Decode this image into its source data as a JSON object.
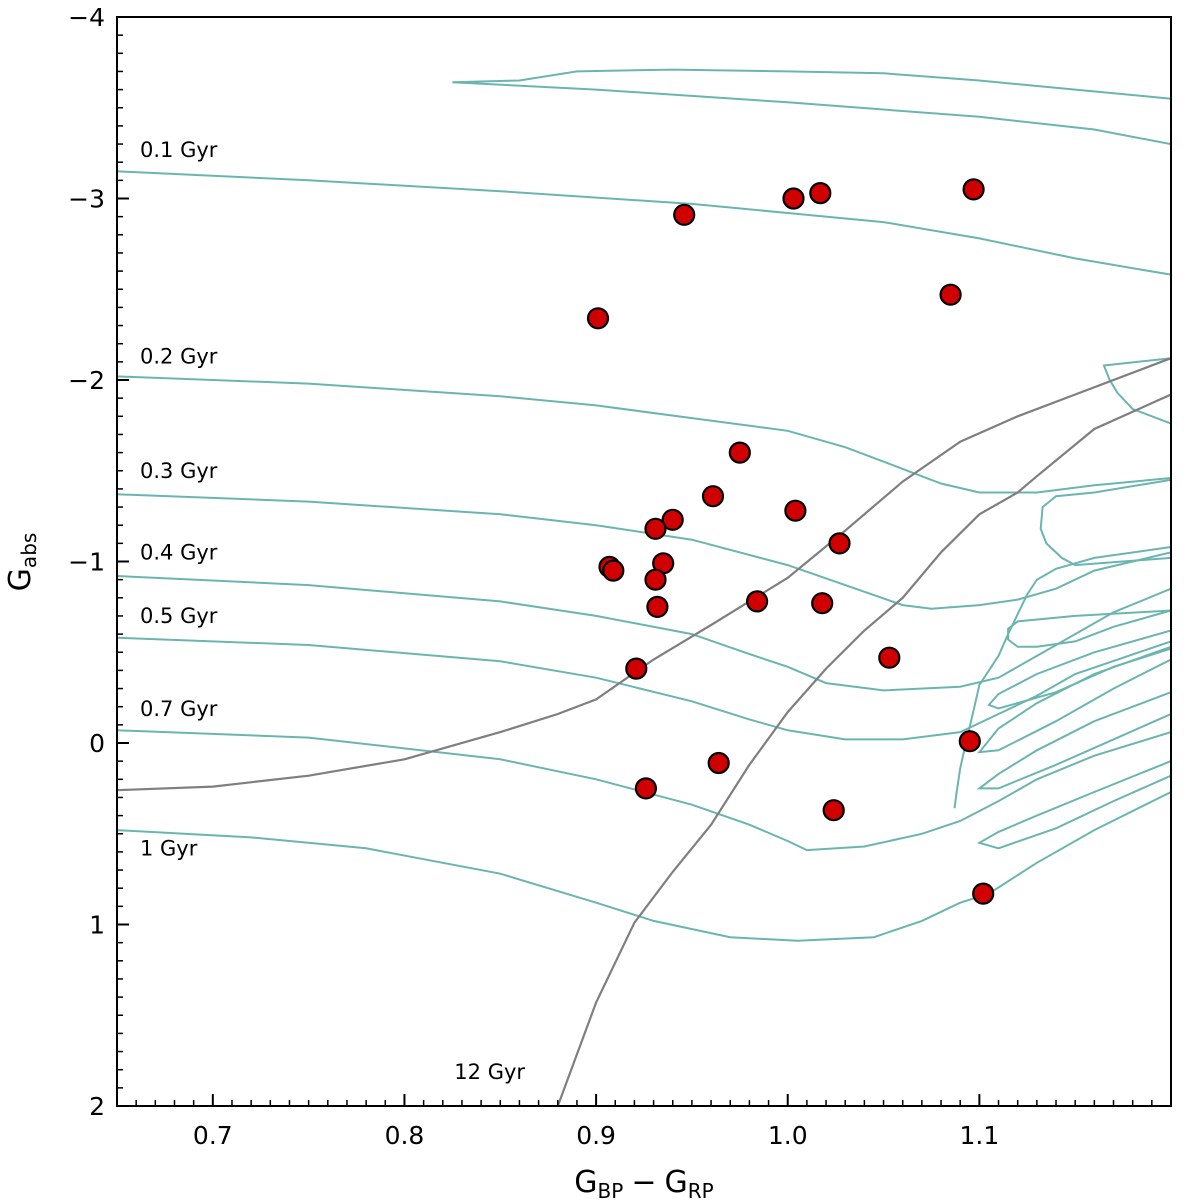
{
  "colors": {
    "isochrone": "#6bb5b1",
    "old_isochrone": "#7f7f7f",
    "star_fill": "#d10000",
    "star_edge": "#000000"
  },
  "chart_data": {
    "type": "scatter",
    "title": "",
    "xlabel": "G",
    "xlabel_sub1": "BP",
    "xlabel_op": "−",
    "xlabel_sub2": "RP",
    "ylabel": "G",
    "ylabel_sub": "abs",
    "xlim": [
      0.65,
      1.2
    ],
    "ylim": [
      2,
      -4
    ],
    "y_inverted": true,
    "grid": false,
    "legend": "none",
    "x_ticks": [
      {
        "value": 0.7,
        "label": "0.7"
      },
      {
        "value": 0.8,
        "label": "0.8"
      },
      {
        "value": 0.9,
        "label": "0.9"
      },
      {
        "value": 1.0,
        "label": "1.0"
      },
      {
        "value": 1.1,
        "label": "1.1"
      }
    ],
    "y_ticks": [
      {
        "value": -4,
        "label": "−4"
      },
      {
        "value": -3,
        "label": "−3"
      },
      {
        "value": -2,
        "label": "−2"
      },
      {
        "value": -1,
        "label": "−1"
      },
      {
        "value": 0,
        "label": "0"
      },
      {
        "value": 1,
        "label": "1"
      },
      {
        "value": 2,
        "label": "2"
      }
    ],
    "isochrone_labels": [
      {
        "text": "0.1 Gyr",
        "x": 0.662,
        "y": -3.23
      },
      {
        "text": "0.2 Gyr",
        "x": 0.662,
        "y": -2.09
      },
      {
        "text": "0.3 Gyr",
        "x": 0.662,
        "y": -1.46
      },
      {
        "text": "0.4 Gyr",
        "x": 0.662,
        "y": -1.01
      },
      {
        "text": "0.5 Gyr",
        "x": 0.662,
        "y": -0.66
      },
      {
        "text": "0.7 Gyr",
        "x": 0.662,
        "y": -0.15
      },
      {
        "text": "1 Gyr",
        "x": 0.662,
        "y": 0.62
      },
      {
        "text": "12 Gyr",
        "x": 0.826,
        "y": 1.85
      }
    ],
    "isochrones": [
      {
        "name": "0.1 Gyr",
        "points": [
          [
            0.65,
            -3.15
          ],
          [
            0.75,
            -3.1
          ],
          [
            0.85,
            -3.04
          ],
          [
            0.95,
            -2.97
          ],
          [
            1.0,
            -2.92
          ],
          [
            1.05,
            -2.87
          ],
          [
            1.1,
            -2.78
          ],
          [
            1.15,
            -2.67
          ],
          [
            1.2,
            -2.58
          ]
        ]
      },
      {
        "name": "0.2 Gyr",
        "points": [
          [
            0.65,
            -2.02
          ],
          [
            0.75,
            -1.98
          ],
          [
            0.85,
            -1.91
          ],
          [
            0.9,
            -1.86
          ],
          [
            0.95,
            -1.79
          ],
          [
            1.0,
            -1.72
          ],
          [
            1.03,
            -1.63
          ],
          [
            1.06,
            -1.51
          ],
          [
            1.08,
            -1.43
          ],
          [
            1.1,
            -1.38
          ],
          [
            1.13,
            -1.38
          ],
          [
            1.16,
            -1.42
          ],
          [
            1.2,
            -1.46
          ]
        ]
      },
      {
        "name": "0.3 Gyr",
        "points": [
          [
            0.65,
            -1.37
          ],
          [
            0.75,
            -1.33
          ],
          [
            0.85,
            -1.26
          ],
          [
            0.9,
            -1.2
          ],
          [
            0.95,
            -1.12
          ],
          [
            1.0,
            -0.98
          ],
          [
            1.03,
            -0.87
          ],
          [
            1.06,
            -0.76
          ],
          [
            1.075,
            -0.74
          ],
          [
            1.1,
            -0.76
          ],
          [
            1.12,
            -0.79
          ],
          [
            1.14,
            -0.85
          ],
          [
            1.16,
            -0.95
          ],
          [
            1.2,
            -1.05
          ]
        ]
      },
      {
        "name": "0.4 Gyr",
        "points": [
          [
            0.65,
            -0.92
          ],
          [
            0.75,
            -0.87
          ],
          [
            0.85,
            -0.78
          ],
          [
            0.9,
            -0.7
          ],
          [
            0.95,
            -0.6
          ],
          [
            0.98,
            -0.49
          ],
          [
            1.0,
            -0.42
          ],
          [
            1.02,
            -0.33
          ],
          [
            1.05,
            -0.29
          ],
          [
            1.09,
            -0.31
          ],
          [
            1.11,
            -0.36
          ],
          [
            1.13,
            -0.48
          ],
          [
            1.15,
            -0.6
          ],
          [
            1.17,
            -0.72
          ],
          [
            1.2,
            -0.85
          ]
        ]
      },
      {
        "name": "0.5 Gyr",
        "points": [
          [
            0.65,
            -0.58
          ],
          [
            0.75,
            -0.54
          ],
          [
            0.85,
            -0.45
          ],
          [
            0.9,
            -0.36
          ],
          [
            0.95,
            -0.23
          ],
          [
            0.98,
            -0.13
          ],
          [
            1.0,
            -0.07
          ],
          [
            1.03,
            -0.02
          ],
          [
            1.06,
            -0.02
          ],
          [
            1.09,
            -0.06
          ],
          [
            1.11,
            -0.16
          ],
          [
            1.13,
            -0.26
          ],
          [
            1.15,
            -0.38
          ],
          [
            1.2,
            -0.56
          ]
        ]
      },
      {
        "name": "0.7 Gyr",
        "points": [
          [
            0.65,
            -0.07
          ],
          [
            0.75,
            -0.03
          ],
          [
            0.85,
            0.09
          ],
          [
            0.9,
            0.2
          ],
          [
            0.95,
            0.34
          ],
          [
            0.98,
            0.45
          ],
          [
            1.0,
            0.54
          ],
          [
            1.01,
            0.59
          ],
          [
            1.04,
            0.57
          ],
          [
            1.07,
            0.5
          ],
          [
            1.09,
            0.43
          ],
          [
            1.11,
            0.32
          ],
          [
            1.13,
            0.2
          ],
          [
            1.16,
            0.07
          ],
          [
            1.2,
            -0.06
          ]
        ]
      },
      {
        "name": "1 Gyr",
        "points": [
          [
            0.65,
            0.48
          ],
          [
            0.72,
            0.52
          ],
          [
            0.78,
            0.58
          ],
          [
            0.85,
            0.72
          ],
          [
            0.9,
            0.88
          ],
          [
            0.93,
            0.98
          ],
          [
            0.97,
            1.07
          ],
          [
            1.005,
            1.09
          ],
          [
            1.045,
            1.07
          ],
          [
            1.07,
            0.98
          ],
          [
            1.09,
            0.88
          ],
          [
            1.105,
            0.83
          ],
          [
            1.13,
            0.66
          ],
          [
            1.16,
            0.48
          ],
          [
            1.2,
            0.27
          ]
        ]
      },
      {
        "name": "upper-1",
        "points": [
          [
            0.825,
            -3.64
          ],
          [
            0.86,
            -3.65
          ],
          [
            0.89,
            -3.7
          ],
          [
            0.94,
            -3.71
          ],
          [
            1.0,
            -3.7
          ],
          [
            1.05,
            -3.69
          ],
          [
            1.1,
            -3.65
          ],
          [
            1.15,
            -3.6
          ],
          [
            1.2,
            -3.55
          ]
        ]
      },
      {
        "name": "upper-2",
        "points": [
          [
            0.825,
            -3.64
          ],
          [
            0.9,
            -3.6
          ],
          [
            1.0,
            -3.53
          ],
          [
            1.1,
            -3.45
          ],
          [
            1.16,
            -3.38
          ],
          [
            1.2,
            -3.3
          ]
        ]
      },
      {
        "name": "loop-top",
        "points": [
          [
            1.2,
            -2.12
          ],
          [
            1.165,
            -2.08
          ],
          [
            1.168,
            -2.0
          ],
          [
            1.172,
            -1.93
          ],
          [
            1.18,
            -1.84
          ],
          [
            1.2,
            -1.76
          ]
        ]
      },
      {
        "name": "loop-mid",
        "points": [
          [
            1.2,
            -1.45
          ],
          [
            1.16,
            -1.38
          ],
          [
            1.14,
            -1.36
          ],
          [
            1.133,
            -1.3
          ],
          [
            1.132,
            -1.18
          ],
          [
            1.135,
            -1.1
          ],
          [
            1.143,
            -1.02
          ],
          [
            1.15,
            -0.98
          ],
          [
            1.2,
            -1.02
          ]
        ]
      },
      {
        "name": "rgb-1",
        "points": [
          [
            1.2,
            -1.08
          ],
          [
            1.16,
            -1.02
          ],
          [
            1.14,
            -0.96
          ],
          [
            1.13,
            -0.9
          ],
          [
            1.125,
            -0.82
          ],
          [
            1.12,
            -0.71
          ],
          [
            1.115,
            -0.6
          ],
          [
            1.11,
            -0.48
          ],
          [
            1.1,
            -0.32
          ],
          [
            1.097,
            -0.18
          ],
          [
            1.093,
            0.0
          ],
          [
            1.09,
            0.14
          ],
          [
            1.088,
            0.28
          ],
          [
            1.087,
            0.36
          ]
        ]
      },
      {
        "name": "rgb-2",
        "points": [
          [
            1.2,
            -0.73
          ],
          [
            1.17,
            -0.64
          ],
          [
            1.15,
            -0.56
          ],
          [
            1.13,
            -0.53
          ],
          [
            1.12,
            -0.53
          ],
          [
            1.115,
            -0.57
          ],
          [
            1.115,
            -0.63
          ],
          [
            1.12,
            -0.67
          ],
          [
            1.15,
            -0.7
          ],
          [
            1.2,
            -0.73
          ]
        ]
      },
      {
        "name": "rgb-3",
        "points": [
          [
            1.2,
            -0.62
          ],
          [
            1.16,
            -0.5
          ],
          [
            1.13,
            -0.38
          ],
          [
            1.11,
            -0.27
          ],
          [
            1.105,
            -0.21
          ],
          [
            1.11,
            -0.19
          ],
          [
            1.14,
            -0.28
          ],
          [
            1.17,
            -0.42
          ],
          [
            1.2,
            -0.52
          ]
        ]
      },
      {
        "name": "rgb-4",
        "points": [
          [
            1.2,
            -0.53
          ],
          [
            1.16,
            -0.38
          ],
          [
            1.13,
            -0.22
          ],
          [
            1.11,
            -0.08
          ],
          [
            1.1,
            0.05
          ],
          [
            1.11,
            0.04
          ],
          [
            1.14,
            -0.12
          ],
          [
            1.17,
            -0.3
          ],
          [
            1.2,
            -0.46
          ]
        ]
      },
      {
        "name": "rgb-5",
        "points": [
          [
            1.2,
            -0.28
          ],
          [
            1.16,
            -0.12
          ],
          [
            1.13,
            0.04
          ],
          [
            1.11,
            0.17
          ],
          [
            1.1,
            0.25
          ],
          [
            1.11,
            0.25
          ],
          [
            1.14,
            0.12
          ],
          [
            1.17,
            -0.02
          ],
          [
            1.2,
            -0.16
          ]
        ]
      },
      {
        "name": "rgb-6",
        "points": [
          [
            1.2,
            0.1
          ],
          [
            1.16,
            0.27
          ],
          [
            1.13,
            0.4
          ],
          [
            1.11,
            0.49
          ],
          [
            1.1,
            0.55
          ],
          [
            1.11,
            0.58
          ],
          [
            1.14,
            0.47
          ],
          [
            1.17,
            0.32
          ],
          [
            1.2,
            0.18
          ]
        ]
      }
    ],
    "old_isochrones": [
      {
        "name": "12 Gyr",
        "points": [
          [
            0.88,
            2.0
          ],
          [
            0.9,
            1.43
          ],
          [
            0.92,
            0.99
          ],
          [
            0.94,
            0.71
          ],
          [
            0.96,
            0.45
          ],
          [
            0.98,
            0.12
          ],
          [
            1.0,
            -0.17
          ],
          [
            1.02,
            -0.41
          ],
          [
            1.04,
            -0.62
          ],
          [
            1.06,
            -0.8
          ],
          [
            1.08,
            -1.05
          ],
          [
            1.1,
            -1.26
          ],
          [
            1.12,
            -1.38
          ],
          [
            1.13,
            -1.47
          ],
          [
            1.16,
            -1.73
          ],
          [
            1.2,
            -1.92
          ]
        ]
      },
      {
        "name": "old-2",
        "points": [
          [
            0.65,
            0.26
          ],
          [
            0.7,
            0.24
          ],
          [
            0.75,
            0.18
          ],
          [
            0.8,
            0.09
          ],
          [
            0.85,
            -0.06
          ],
          [
            0.88,
            -0.16
          ],
          [
            0.9,
            -0.24
          ],
          [
            0.93,
            -0.46
          ],
          [
            0.96,
            -0.65
          ],
          [
            1.0,
            -0.91
          ],
          [
            1.03,
            -1.17
          ],
          [
            1.06,
            -1.44
          ],
          [
            1.09,
            -1.66
          ],
          [
            1.12,
            -1.8
          ],
          [
            1.15,
            -1.92
          ],
          [
            1.2,
            -2.12
          ]
        ]
      }
    ],
    "points": [
      {
        "x": 0.901,
        "y": -2.34
      },
      {
        "x": 0.946,
        "y": -2.91
      },
      {
        "x": 1.003,
        "y": -3.0
      },
      {
        "x": 1.017,
        "y": -3.03
      },
      {
        "x": 1.097,
        "y": -3.05
      },
      {
        "x": 1.085,
        "y": -2.47
      },
      {
        "x": 0.975,
        "y": -1.6
      },
      {
        "x": 0.961,
        "y": -1.36
      },
      {
        "x": 0.94,
        "y": -1.23
      },
      {
        "x": 0.931,
        "y": -1.18
      },
      {
        "x": 1.004,
        "y": -1.28
      },
      {
        "x": 1.027,
        "y": -1.1
      },
      {
        "x": 0.907,
        "y": -0.97
      },
      {
        "x": 0.909,
        "y": -0.95
      },
      {
        "x": 0.935,
        "y": -0.99
      },
      {
        "x": 0.931,
        "y": -0.9
      },
      {
        "x": 0.932,
        "y": -0.75
      },
      {
        "x": 0.984,
        "y": -0.78
      },
      {
        "x": 1.018,
        "y": -0.77
      },
      {
        "x": 0.921,
        "y": -0.41
      },
      {
        "x": 1.053,
        "y": -0.47
      },
      {
        "x": 1.095,
        "y": -0.01
      },
      {
        "x": 0.964,
        "y": 0.11
      },
      {
        "x": 0.926,
        "y": 0.25
      },
      {
        "x": 1.024,
        "y": 0.37
      },
      {
        "x": 1.102,
        "y": 0.83
      }
    ]
  }
}
